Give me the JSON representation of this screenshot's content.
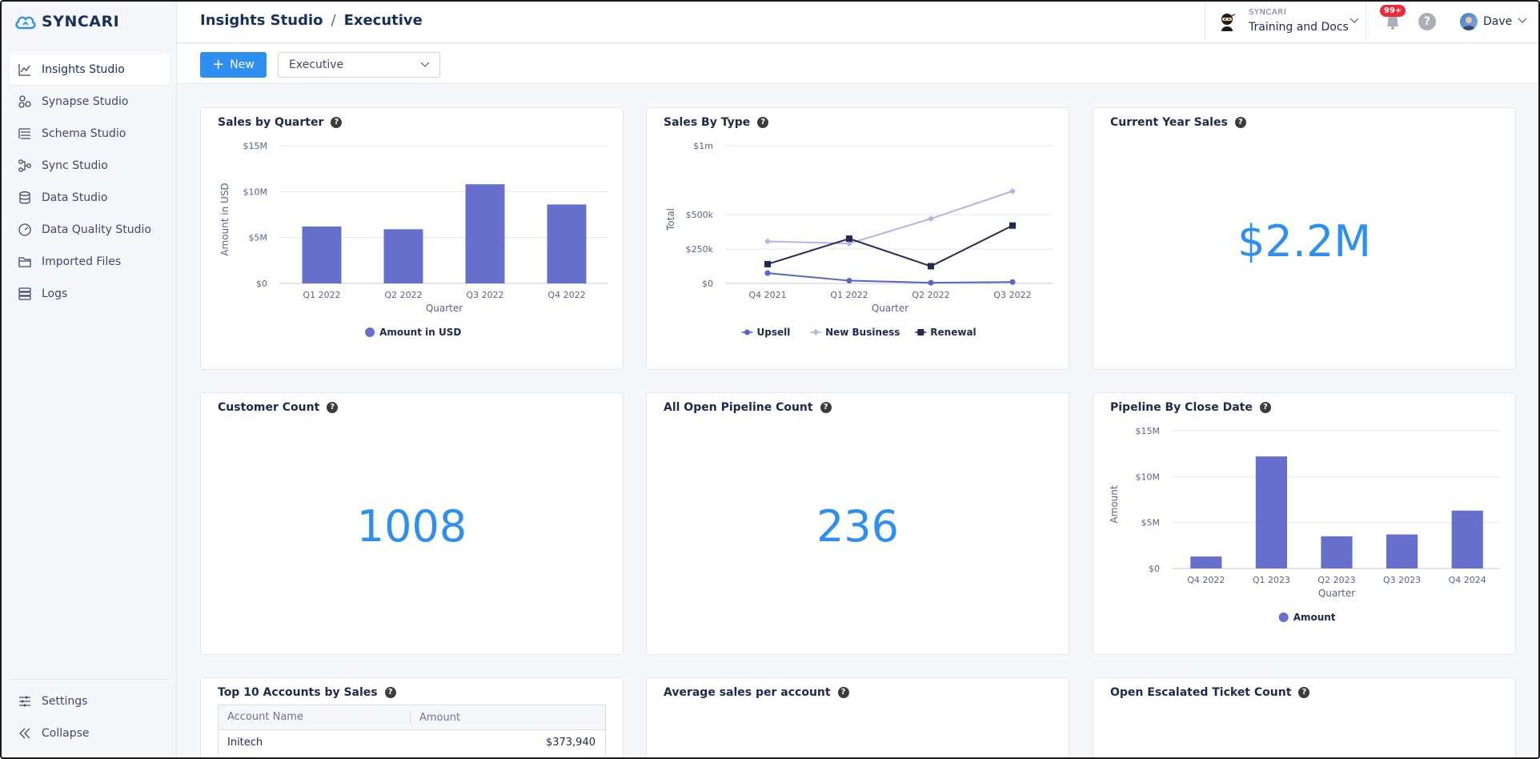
{
  "brand": {
    "name": "SYNCARI",
    "accent": "#2f8ff0"
  },
  "sidebar": {
    "items": [
      {
        "label": "Insights Studio",
        "icon": "chart-icon",
        "active": true
      },
      {
        "label": "Synapse Studio",
        "icon": "synapse-icon"
      },
      {
        "label": "Schema Studio",
        "icon": "schema-icon"
      },
      {
        "label": "Sync Studio",
        "icon": "sync-icon"
      },
      {
        "label": "Data Studio",
        "icon": "database-icon"
      },
      {
        "label": "Data Quality Studio",
        "icon": "gauge-icon"
      },
      {
        "label": "Imported Files",
        "icon": "folder-icon"
      },
      {
        "label": "Logs",
        "icon": "logs-icon"
      }
    ],
    "bottom": [
      {
        "label": "Settings",
        "icon": "sliders-icon"
      },
      {
        "label": "Collapse",
        "icon": "collapse-icon"
      }
    ]
  },
  "header": {
    "breadcrumb": [
      "Insights Studio",
      "Executive"
    ],
    "separator": "/",
    "org_label": "SYNCARI",
    "org_name": "Training and Docs",
    "notification_badge": "99+",
    "help": "?",
    "user_name": "Dave"
  },
  "toolbar": {
    "new_label": "New",
    "dashboard_selected": "Executive"
  },
  "cards": {
    "sales_by_quarter": {
      "title": "Sales by Quarter"
    },
    "sales_by_type": {
      "title": "Sales By Type"
    },
    "current_year_sales": {
      "title": "Current Year Sales",
      "value": "$2.2M"
    },
    "customer_count": {
      "title": "Customer Count",
      "value": "1008"
    },
    "open_pipeline_count": {
      "title": "All Open Pipeline Count",
      "value": "236"
    },
    "pipeline_by_close_date": {
      "title": "Pipeline By Close Date"
    },
    "top_accounts": {
      "title": "Top 10 Accounts by Sales",
      "columns": [
        "Account Name",
        "Amount"
      ],
      "rows": [
        {
          "name": "Initech",
          "amount": "$373,940"
        }
      ]
    },
    "avg_sales": {
      "title": "Average sales per account"
    },
    "escalated_tickets": {
      "title": "Open Escalated Ticket Count"
    }
  },
  "chart_data": [
    {
      "id": "sales_by_quarter",
      "type": "bar",
      "categories": [
        "Q1 2022",
        "Q2 2022",
        "Q3 2022",
        "Q4 2022"
      ],
      "series": [
        {
          "name": "Amount in USD",
          "values": [
            6.2,
            5.9,
            10.8,
            8.6
          ],
          "color": "#6670cc"
        }
      ],
      "xlabel": "Quarter",
      "ylabel": "Amount in USD",
      "ylim": [
        0,
        15
      ],
      "yticks": [
        {
          "v": 0,
          "label": "$0"
        },
        {
          "v": 5,
          "label": "$5M"
        },
        {
          "v": 10,
          "label": "$10M"
        },
        {
          "v": 15,
          "label": "$15M"
        }
      ],
      "legend": "bottom",
      "grid": true
    },
    {
      "id": "sales_by_type",
      "type": "line",
      "categories": [
        "Q4 2021",
        "Q1 2022",
        "Q2 2022",
        "Q3 2022"
      ],
      "series": [
        {
          "name": "Upsell",
          "values": [
            75,
            20,
            5,
            10
          ],
          "color": "#5a64c8",
          "marker": "circle"
        },
        {
          "name": "New Business",
          "values": [
            305,
            290,
            470,
            670
          ],
          "color": "#b3b5e6",
          "marker": "diamond"
        },
        {
          "name": "Renewal",
          "values": [
            140,
            325,
            125,
            420
          ],
          "color": "#232a52",
          "marker": "square"
        }
      ],
      "xlabel": "Quarter",
      "ylabel": "Total",
      "ylim": [
        0,
        1000
      ],
      "yticks": [
        {
          "v": 0,
          "label": "$0"
        },
        {
          "v": 250,
          "label": "$250k"
        },
        {
          "v": 500,
          "label": "$500k"
        },
        {
          "v": 1000,
          "label": "$1m"
        }
      ],
      "legend": "bottom",
      "grid": true
    },
    {
      "id": "pipeline_by_close_date",
      "type": "bar",
      "categories": [
        "Q4 2022",
        "Q1 2023",
        "Q2 2023",
        "Q3 2023",
        "Q4 2024"
      ],
      "series": [
        {
          "name": "Amount",
          "values": [
            1.3,
            12.2,
            3.5,
            3.7,
            6.3
          ],
          "color": "#6670cc"
        }
      ],
      "xlabel": "Quarter",
      "ylabel": "Amount",
      "ylim": [
        0,
        15
      ],
      "yticks": [
        {
          "v": 0,
          "label": "$0"
        },
        {
          "v": 5,
          "label": "$5M"
        },
        {
          "v": 10,
          "label": "$10M"
        },
        {
          "v": 15,
          "label": "$15M"
        }
      ],
      "legend": "bottom",
      "grid": true
    }
  ]
}
